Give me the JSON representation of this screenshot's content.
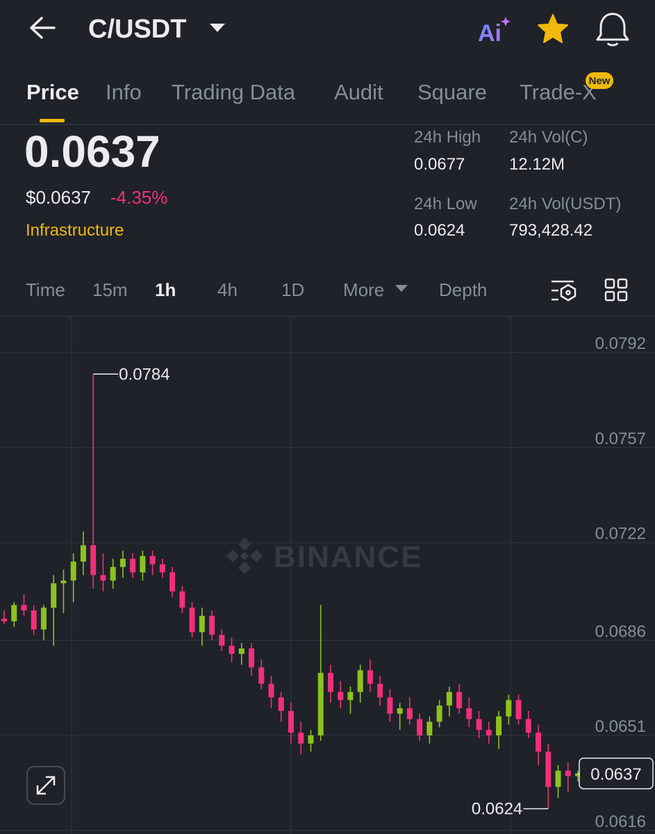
{
  "header": {
    "pair": "C/USDT",
    "ai": "Ai"
  },
  "tabs": [
    "Price",
    "Info",
    "Trading Data",
    "Audit",
    "Square",
    "Trade-X"
  ],
  "badge": "New",
  "price": {
    "last": "0.0637",
    "usd": "$0.0637",
    "change": "-4.35%",
    "sector": "Infrastructure"
  },
  "stats": [
    {
      "label": "24h High",
      "value": "0.0677"
    },
    {
      "label": "24h Vol(C)",
      "value": "12.12M"
    },
    {
      "label": "24h Low",
      "value": "0.0624"
    },
    {
      "label": "24h Vol(USDT)",
      "value": "793,428.42"
    }
  ],
  "intervals": [
    "Time",
    "15m",
    "1h",
    "4h",
    "1D",
    "More",
    "Depth"
  ],
  "chart_data": {
    "type": "candlestick",
    "watermark": "BINANCE",
    "up_color": "#8dc21f",
    "down_color": "#f0307a",
    "grid": true,
    "ylim": [
      0.06147,
      0.08053
    ],
    "yticks": [
      0.0792,
      0.0757,
      0.0722,
      0.0686,
      0.0651,
      0.0616
    ],
    "open": [
      0.0694,
      0.0693,
      0.0699,
      0.0697,
      0.069,
      0.0698,
      0.0707,
      0.0708,
      0.0715,
      0.0721,
      0.071,
      0.0708,
      0.0713,
      0.0716,
      0.0711,
      0.0717,
      0.0714,
      0.0711,
      0.0704,
      0.0698,
      0.0689,
      0.0695,
      0.0688,
      0.0684,
      0.0681,
      0.0683,
      0.0676,
      0.067,
      0.0665,
      0.066,
      0.0652,
      0.0648,
      0.0651,
      0.0674,
      0.0667,
      0.0664,
      0.0667,
      0.0675,
      0.067,
      0.0665,
      0.0659,
      0.0661,
      0.0657,
      0.0651,
      0.0656,
      0.0662,
      0.0667,
      0.0661,
      0.0657,
      0.0653,
      0.0651,
      0.0658,
      0.0664,
      0.0657,
      0.0652,
      0.0645,
      0.0632,
      0.0638,
      0.0636
    ],
    "high": [
      0.0697,
      0.07,
      0.0703,
      0.0699,
      0.0699,
      0.071,
      0.0712,
      0.0718,
      0.0726,
      0.0784,
      0.0718,
      0.0716,
      0.0719,
      0.0718,
      0.0719,
      0.0719,
      0.0716,
      0.0713,
      0.0706,
      0.07,
      0.0698,
      0.0697,
      0.069,
      0.0687,
      0.0685,
      0.0685,
      0.0679,
      0.0673,
      0.0667,
      0.0663,
      0.0656,
      0.0653,
      0.0699,
      0.0677,
      0.0671,
      0.0669,
      0.0677,
      0.0679,
      0.0673,
      0.0668,
      0.0663,
      0.0665,
      0.0659,
      0.0658,
      0.0664,
      0.0669,
      0.067,
      0.0665,
      0.066,
      0.0656,
      0.066,
      0.0666,
      0.0666,
      0.066,
      0.0655,
      0.0648,
      0.064,
      0.0641,
      0.0638
    ],
    "low": [
      0.0692,
      0.0691,
      0.0695,
      0.0688,
      0.0686,
      0.0684,
      0.0696,
      0.07,
      0.071,
      0.0705,
      0.0704,
      0.0705,
      0.0709,
      0.0709,
      0.0708,
      0.071,
      0.0709,
      0.0702,
      0.0696,
      0.0687,
      0.0684,
      0.0686,
      0.0682,
      0.0678,
      0.0677,
      0.0673,
      0.0668,
      0.0661,
      0.0656,
      0.0648,
      0.0644,
      0.0645,
      0.0649,
      0.0663,
      0.0661,
      0.0659,
      0.0663,
      0.0667,
      0.0662,
      0.0656,
      0.0653,
      0.0655,
      0.0649,
      0.0648,
      0.0654,
      0.0658,
      0.0659,
      0.0654,
      0.065,
      0.0648,
      0.0646,
      0.0655,
      0.0655,
      0.065,
      0.064,
      0.0624,
      0.0628,
      0.063,
      0.0634
    ],
    "close": [
      0.0693,
      0.0699,
      0.0697,
      0.069,
      0.0698,
      0.0707,
      0.0708,
      0.0715,
      0.0721,
      0.071,
      0.0708,
      0.0713,
      0.0716,
      0.0711,
      0.0717,
      0.0714,
      0.0711,
      0.0704,
      0.0698,
      0.0689,
      0.0695,
      0.0688,
      0.0684,
      0.0681,
      0.0683,
      0.0676,
      0.067,
      0.0665,
      0.066,
      0.0652,
      0.0648,
      0.0651,
      0.0674,
      0.0667,
      0.0664,
      0.0667,
      0.0675,
      0.067,
      0.0665,
      0.0659,
      0.0661,
      0.0657,
      0.0651,
      0.0656,
      0.0662,
      0.0667,
      0.0661,
      0.0657,
      0.0653,
      0.0651,
      0.0658,
      0.0664,
      0.0657,
      0.0652,
      0.0645,
      0.0632,
      0.0638,
      0.0636,
      0.0637
    ]
  }
}
